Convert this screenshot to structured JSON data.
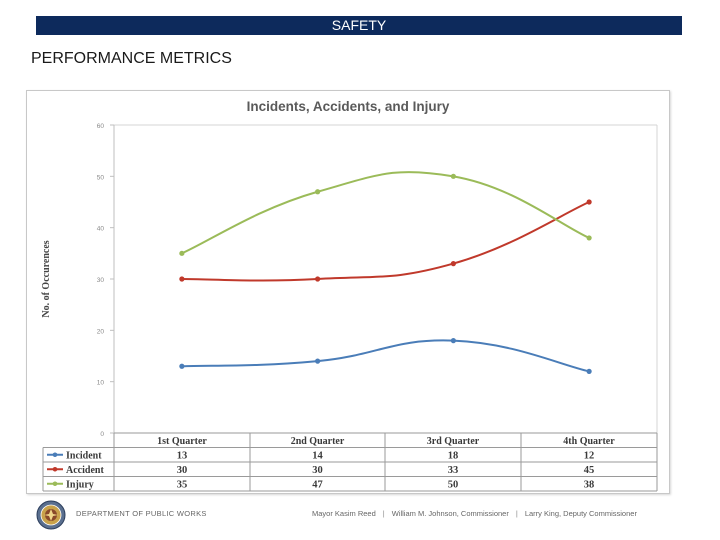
{
  "header": {
    "banner_title": "SAFETY",
    "section_title": "PERFORMANCE METRICS"
  },
  "colors": {
    "banner": "#0d2a5c",
    "incident": "#4a7db8",
    "accident": "#c0392b",
    "injury": "#9bbb59"
  },
  "chart_data": {
    "type": "line",
    "title": "Incidents,  Accidents, and Injury",
    "xlabel": "",
    "ylabel": "No. of Occurences",
    "ylim": [
      0,
      60
    ],
    "yticks": [
      0,
      10,
      20,
      30,
      40,
      50,
      60
    ],
    "categories": [
      "1st Quarter",
      "2nd Quarter",
      "3rd Quarter",
      "4th Quarter"
    ],
    "series": [
      {
        "name": "Incident",
        "values": [
          13,
          14,
          18,
          12
        ],
        "table_values": [
          "13",
          "14",
          "18",
          "12"
        ]
      },
      {
        "name": "Accident",
        "values": [
          30,
          30,
          33,
          45
        ],
        "table_values": [
          "30",
          "30",
          "33",
          "45"
        ]
      },
      {
        "name": "Injury",
        "values": [
          35,
          47,
          50,
          38
        ],
        "table_values": [
          "35",
          "47",
          "50",
          "38"
        ]
      }
    ],
    "grid": false,
    "legend": "data-table-below"
  },
  "footer": {
    "department": "DEPARTMENT OF PUBLIC WORKS",
    "mayor": "Mayor Kasim Reed",
    "separator": "|",
    "commissioner": "William M. Johnson, Commissioner",
    "deputy": "Larry King, Deputy Commissioner"
  }
}
